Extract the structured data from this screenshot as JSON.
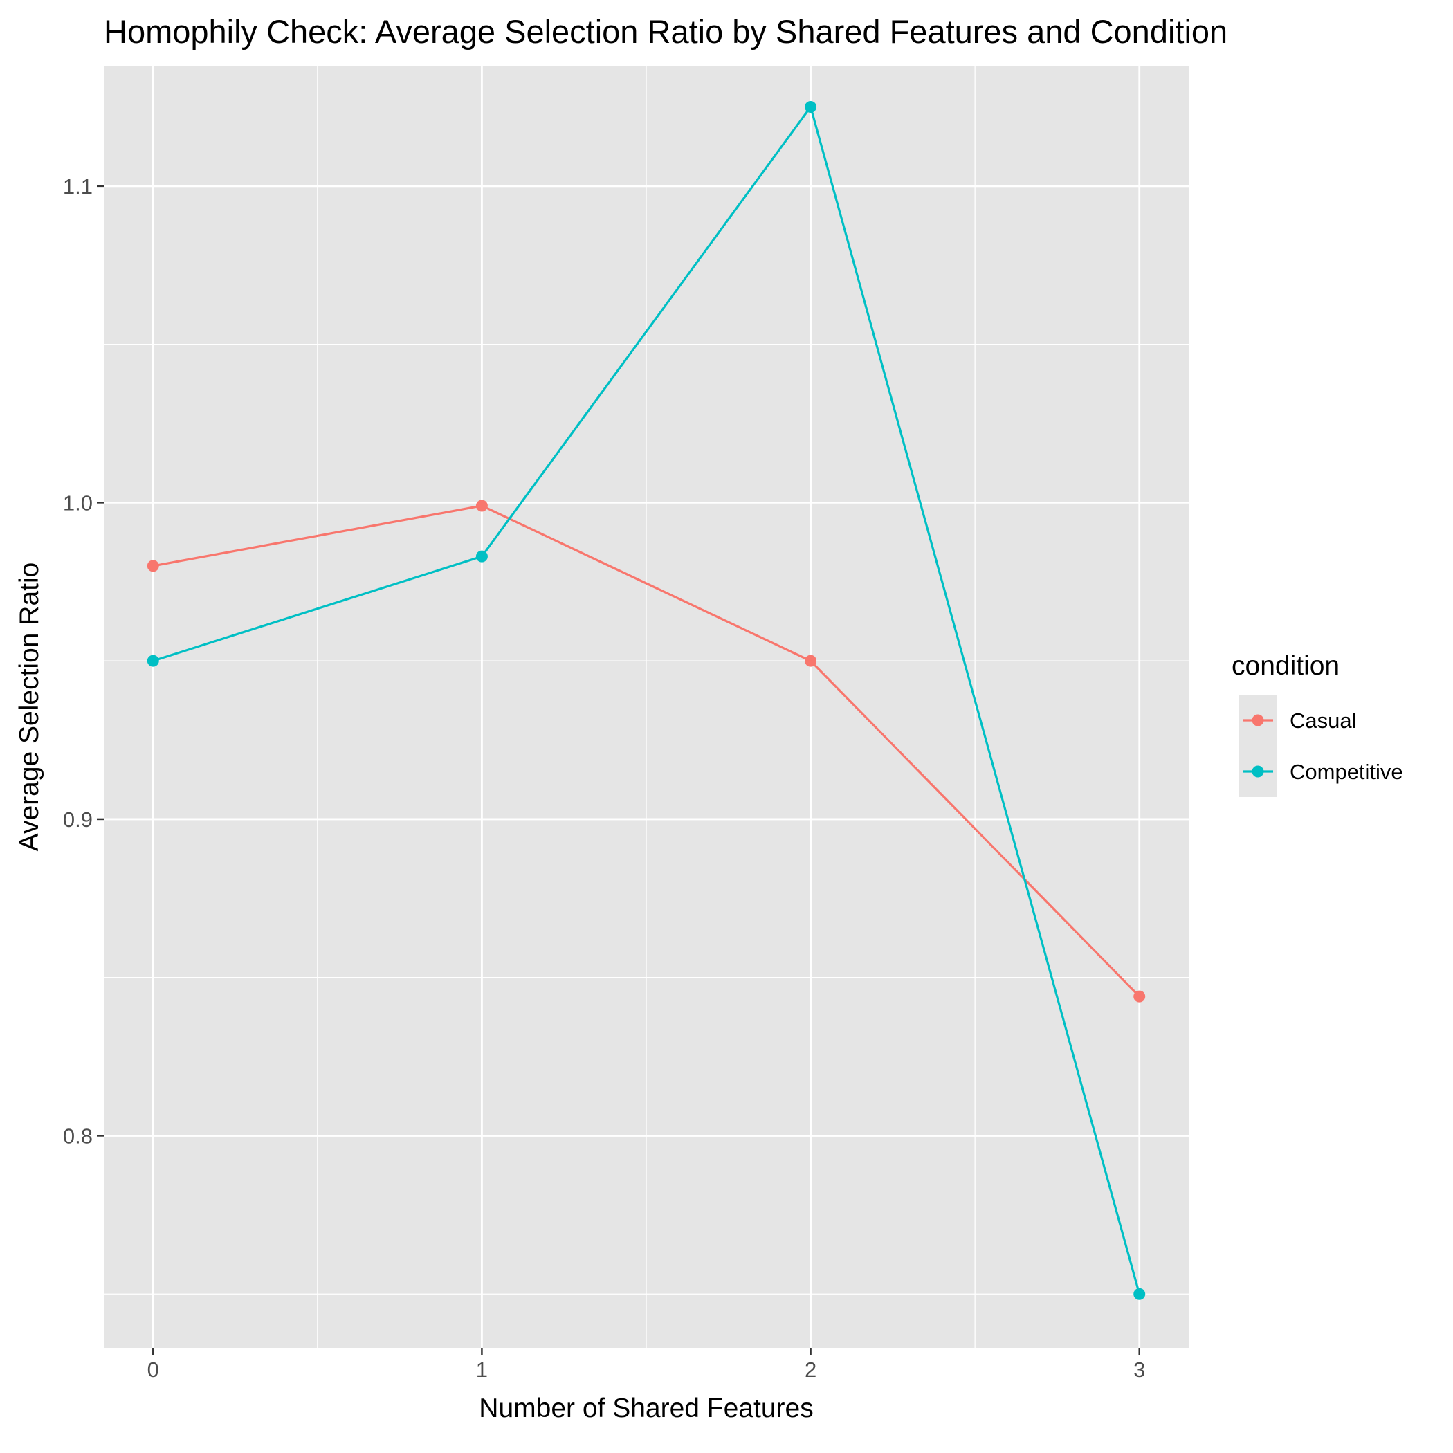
{
  "chart_data": {
    "type": "line",
    "title": "Homophily Check: Average Selection Ratio by Shared Features and Condition",
    "xlabel": "Number of Shared Features",
    "ylabel": "Average Selection Ratio",
    "x": [
      0,
      1,
      2,
      3
    ],
    "x_ticks": [
      "0",
      "1",
      "2",
      "3"
    ],
    "y_ticks": [
      "0.8",
      "0.9",
      "1.0",
      "1.1"
    ],
    "xlim": [
      -0.15,
      3.15
    ],
    "ylim": [
      0.733,
      1.138
    ],
    "grid": true,
    "legend": {
      "title": "condition",
      "placement": "right"
    },
    "series": [
      {
        "name": "Casual",
        "color": "#F8766D",
        "values": [
          0.98,
          0.999,
          0.95,
          0.844
        ]
      },
      {
        "name": "Competitive",
        "color": "#00BFC4",
        "values": [
          0.95,
          0.983,
          1.125,
          0.75
        ]
      }
    ]
  }
}
